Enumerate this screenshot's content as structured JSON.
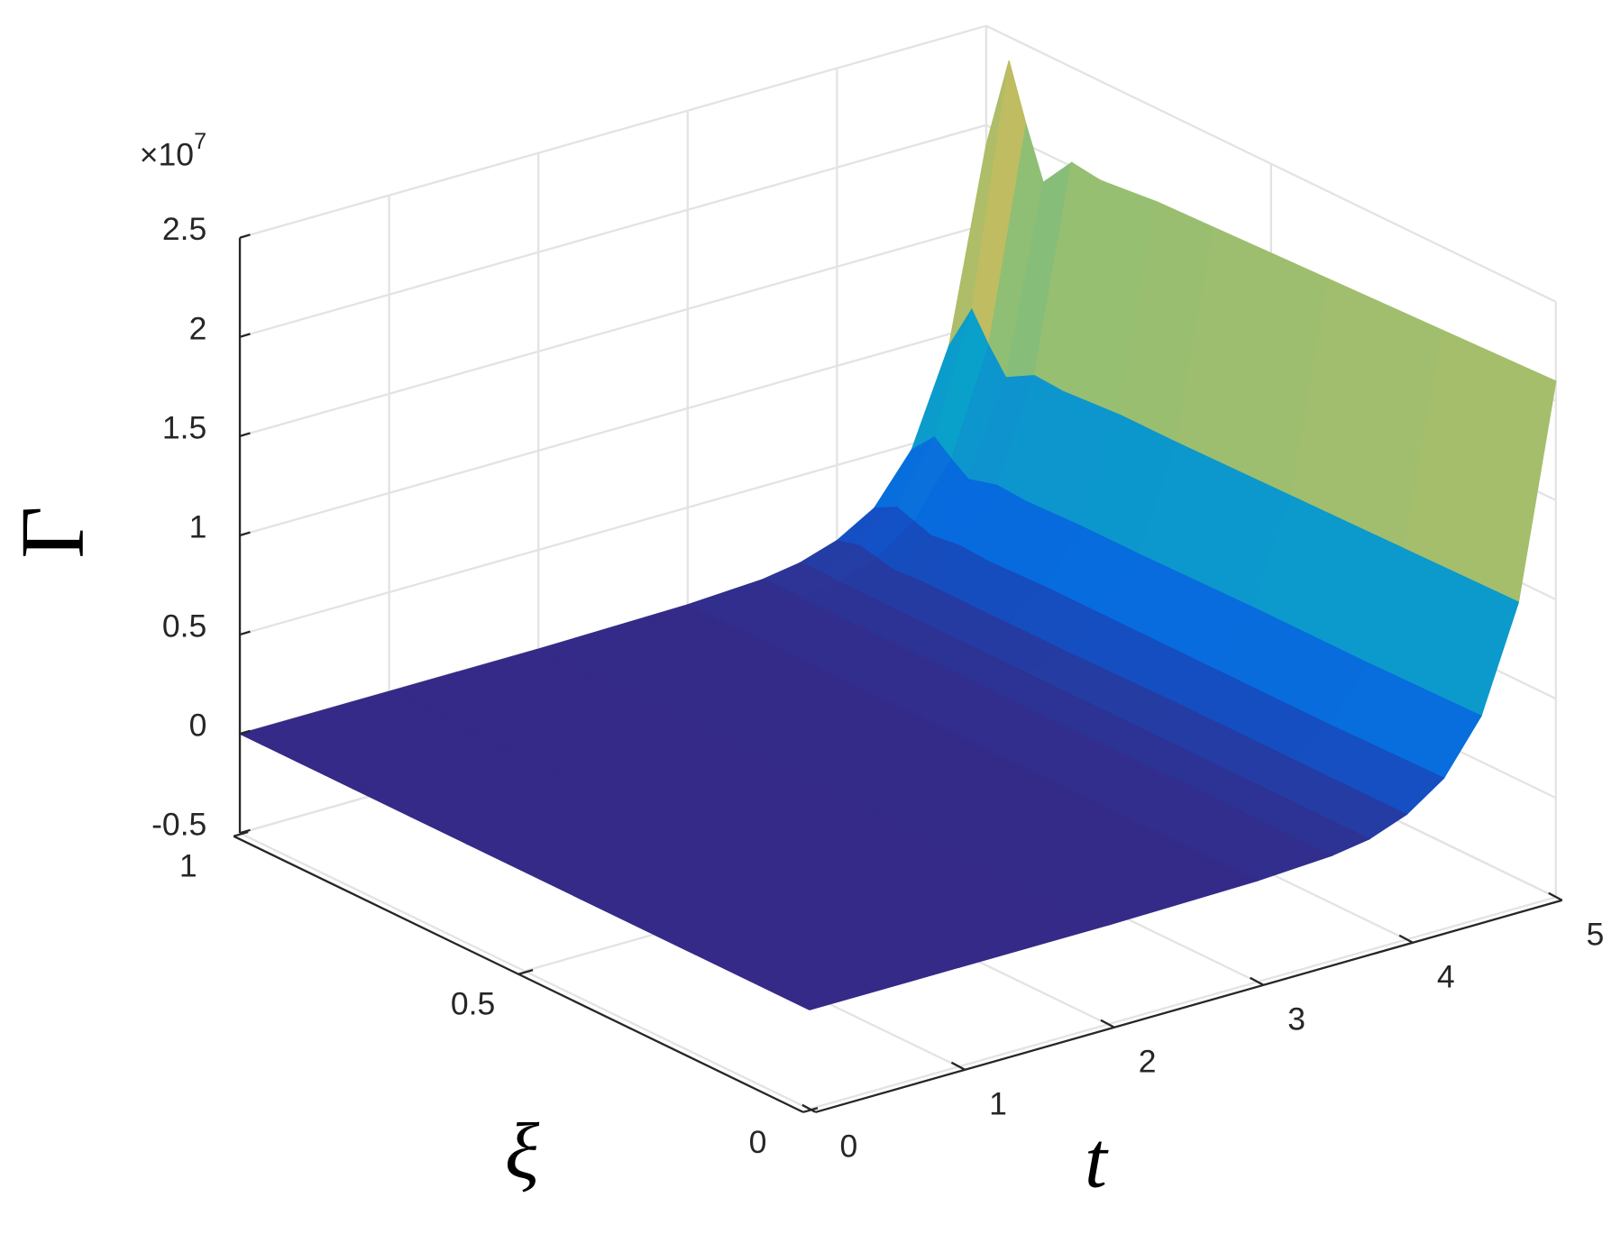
{
  "chart_data": {
    "type": "surface",
    "x_label": "t",
    "y_label": "ξ",
    "z_label": "Γ",
    "z_multiplier": {
      "base": "×10",
      "exponent": "7"
    },
    "x": [
      0,
      1,
      2,
      3,
      3.5,
      3.75,
      4,
      4.25,
      4.5,
      4.75,
      5
    ],
    "y": [
      0,
      0.2,
      0.4,
      0.6,
      0.7,
      0.8,
      0.85,
      0.9,
      0.93,
      0.96,
      1
    ],
    "z": [
      [
        0,
        0,
        0,
        0.01,
        0.03,
        0.06,
        0.13,
        0.26,
        0.52,
        1.04,
        2.1
      ],
      [
        0,
        0,
        0,
        0.01,
        0.03,
        0.06,
        0.13,
        0.25,
        0.51,
        1.03,
        2.08
      ],
      [
        0,
        0,
        0,
        0.01,
        0.03,
        0.06,
        0.13,
        0.25,
        0.51,
        1.02,
        2.06
      ],
      [
        0,
        0,
        0,
        0.01,
        0.03,
        0.06,
        0.12,
        0.25,
        0.5,
        1.01,
        2.04
      ],
      [
        0,
        0,
        0,
        0.01,
        0.03,
        0.06,
        0.12,
        0.25,
        0.5,
        1.01,
        2.03
      ],
      [
        0,
        0,
        0,
        0.01,
        0.03,
        0.06,
        0.12,
        0.24,
        0.49,
        0.99,
        2.0
      ],
      [
        0,
        0,
        0,
        0.01,
        0.03,
        0.06,
        0.12,
        0.25,
        0.5,
        1.0,
        2.02
      ],
      [
        0,
        0,
        0,
        0.01,
        0.03,
        0.06,
        0.11,
        0.23,
        0.46,
        0.92,
        1.85
      ],
      [
        0,
        0,
        0,
        0.01,
        0.03,
        0.06,
        0.13,
        0.26,
        0.52,
        1.04,
        2.1
      ],
      [
        0,
        0,
        0,
        0.01,
        0.04,
        0.07,
        0.15,
        0.29,
        0.59,
        1.18,
        2.38
      ],
      [
        0,
        0,
        0,
        0.01,
        0.03,
        0.06,
        0.12,
        0.23,
        0.47,
        0.94,
        1.9
      ]
    ],
    "xlim": [
      0,
      5
    ],
    "ylim": [
      0,
      1
    ],
    "zlim": [
      -0.5,
      2.5
    ],
    "xticks": [
      0,
      1,
      2,
      3,
      4,
      5
    ],
    "yticks": [
      0,
      0.5,
      1
    ],
    "zticks": [
      -0.5,
      0,
      0.5,
      1,
      1.5,
      2,
      2.5
    ],
    "grid": true,
    "colormap": "parula"
  }
}
